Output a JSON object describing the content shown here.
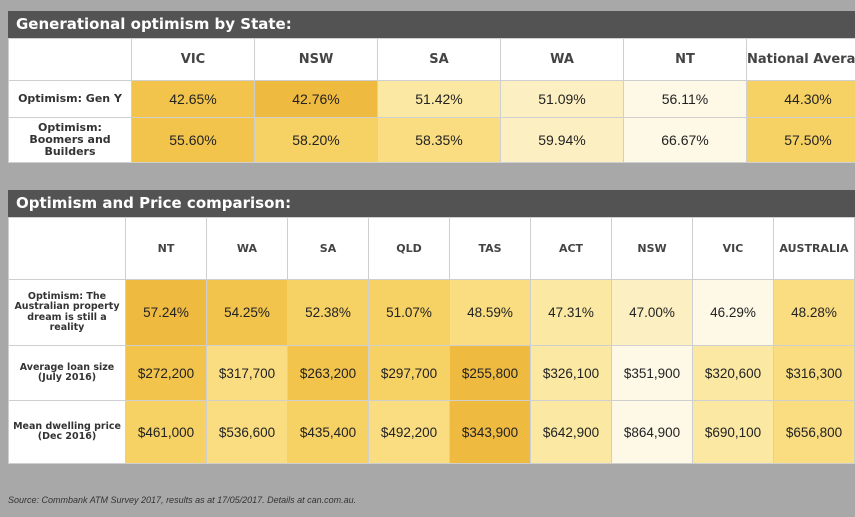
{
  "colors": {
    "header_bar": "#535353",
    "background": "#a8a8a8",
    "scale": [
      "#fdf9e6",
      "#fcf0c2",
      "#fbe9a3",
      "#f9dd80",
      "#f6d163",
      "#f2c44c",
      "#efba40"
    ]
  },
  "chart_data": [
    {
      "type": "table",
      "title": "Generational optimism by State:",
      "columns": [
        "VIC",
        "NSW",
        "SA",
        "WA",
        "NT",
        "National Average"
      ],
      "rows": [
        {
          "label": "Optimism: Gen Y",
          "values": [
            42.65,
            42.76,
            51.42,
            51.09,
            56.11,
            44.3
          ],
          "display": [
            "42.65%",
            "42.76%",
            "51.42%",
            "51.09%",
            "56.11%",
            "44.30%"
          ],
          "shade": [
            5,
            6,
            2,
            1,
            0,
            4
          ]
        },
        {
          "label": "Optimism: Boomers and Builders",
          "values": [
            55.6,
            58.2,
            58.35,
            59.94,
            66.67,
            57.5
          ],
          "display": [
            "55.60%",
            "58.20%",
            "58.35%",
            "59.94%",
            "66.67%",
            "57.50%"
          ],
          "shade": [
            5,
            4,
            3,
            1,
            0,
            4
          ]
        }
      ]
    },
    {
      "type": "table",
      "title": "Optimism and Price comparison:",
      "columns": [
        "NT",
        "WA",
        "SA",
        "QLD",
        "TAS",
        "ACT",
        "NSW",
        "VIC",
        "AUSTRALIA"
      ],
      "rows": [
        {
          "label": "Optimism: The Australian property dream is still a reality",
          "values": [
            57.24,
            54.25,
            52.38,
            51.07,
            48.59,
            47.31,
            47.0,
            46.29,
            48.28
          ],
          "display": [
            "57.24%",
            "54.25%",
            "52.38%",
            "51.07%",
            "48.59%",
            "47.31%",
            "47.00%",
            "46.29%",
            "48.28%"
          ],
          "shade": [
            6,
            5,
            4,
            4,
            3,
            2,
            1,
            0,
            3
          ]
        },
        {
          "label": "Average loan size (July 2016)",
          "values": [
            272200,
            317700,
            263200,
            297700,
            255800,
            326100,
            351900,
            320600,
            316300
          ],
          "display": [
            "$272,200",
            "$317,700",
            "$263,200",
            "$297,700",
            "$255,800",
            "$326,100",
            "$351,900",
            "$320,600",
            "$316,300"
          ],
          "shade": [
            5,
            3,
            5,
            4,
            6,
            2,
            0,
            2,
            3
          ]
        },
        {
          "label": "Mean dwelling price (Dec 2016)",
          "values": [
            461000,
            536600,
            435400,
            492200,
            343900,
            642900,
            864900,
            690100,
            656800
          ],
          "display": [
            "$461,000",
            "$536,600",
            "$435,400",
            "$492,200",
            "$343,900",
            "$642,900",
            "$864,900",
            "$690,100",
            "$656,800"
          ],
          "shade": [
            4,
            3,
            4,
            3,
            6,
            2,
            0,
            2,
            3
          ]
        }
      ]
    }
  ],
  "source_note": "Source: Commbank ATM Survey 2017,  results as at 17/05/2017. Details at can.com.au."
}
